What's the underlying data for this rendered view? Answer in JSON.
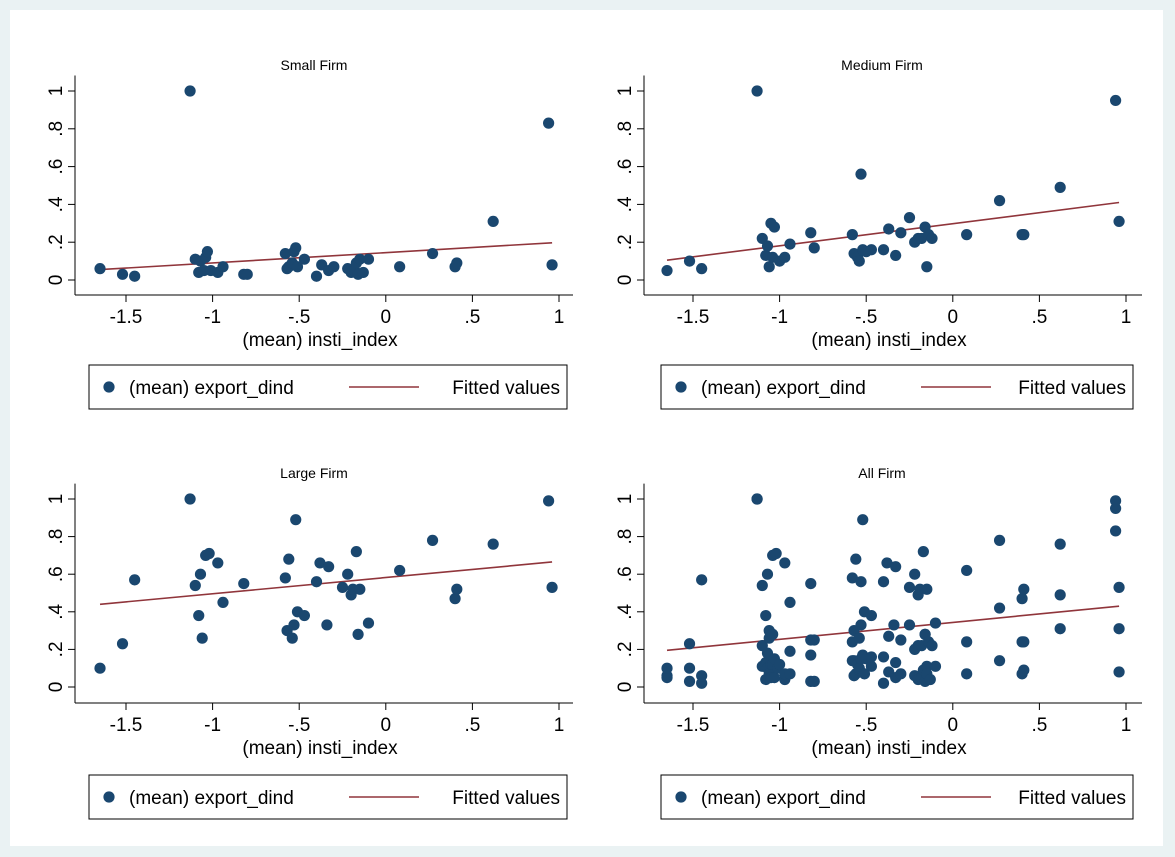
{
  "colors": {
    "outer_bg": "#eaf2f3",
    "plot_bg": "#ffffff",
    "marker": "#1a476f",
    "fit_line": "#90353b",
    "legend_border": "#000000"
  },
  "legend": {
    "marker_label": "(mean) export_dind",
    "line_label": "Fitted values",
    "placement": "bottom"
  },
  "chart_data": [
    {
      "type": "scatter",
      "title": "Small Firm",
      "xlabel": "(mean) insti_index",
      "ylabel": "",
      "xlim": [
        -1.7,
        1.0
      ],
      "ylim": [
        -0.05,
        1.05
      ],
      "xticks": [
        -1.5,
        -1,
        -0.5,
        0,
        0.5,
        1
      ],
      "xtick_labels": [
        "-1.5",
        "-1",
        "-.5",
        "0",
        ".5",
        "1"
      ],
      "yticks": [
        0,
        0.2,
        0.4,
        0.6,
        0.8,
        1
      ],
      "ytick_labels": [
        "0",
        ".2",
        ".4",
        ".6",
        ".8",
        "1"
      ],
      "grid": false,
      "series": [
        {
          "name": "(mean) export_dind",
          "kind": "markers",
          "x": [
            -1.65,
            -1.52,
            -1.45,
            -1.13,
            -1.1,
            -1.08,
            -1.07,
            -1.05,
            -1.04,
            -1.03,
            -1.01,
            -0.97,
            -0.94,
            -0.82,
            -0.8,
            -0.58,
            -0.57,
            -0.56,
            -0.54,
            -0.53,
            -0.52,
            -0.51,
            -0.47,
            -0.4,
            -0.37,
            -0.33,
            -0.3,
            -0.22,
            -0.2,
            -0.18,
            -0.17,
            -0.16,
            -0.15,
            -0.13,
            -0.1,
            0.08,
            0.27,
            0.4,
            0.41,
            0.62,
            0.94,
            0.96
          ],
          "y": [
            0.06,
            0.03,
            0.02,
            1.0,
            0.11,
            0.04,
            0.1,
            0.05,
            0.12,
            0.15,
            0.05,
            0.04,
            0.07,
            0.03,
            0.03,
            0.14,
            0.06,
            0.07,
            0.09,
            0.15,
            0.17,
            0.07,
            0.11,
            0.02,
            0.08,
            0.05,
            0.07,
            0.06,
            0.04,
            0.05,
            0.09,
            0.03,
            0.11,
            0.04,
            0.11,
            0.07,
            0.14,
            0.07,
            0.09,
            0.31,
            0.83,
            0.08
          ]
        },
        {
          "name": "Fitted values",
          "kind": "line",
          "x": [
            -1.65,
            0.96
          ],
          "y": [
            0.055,
            0.197
          ]
        }
      ]
    },
    {
      "type": "scatter",
      "title": "Medium Firm",
      "xlabel": "(mean) insti_index",
      "ylabel": "",
      "xlim": [
        -1.7,
        1.0
      ],
      "ylim": [
        -0.05,
        1.05
      ],
      "xticks": [
        -1.5,
        -1,
        -0.5,
        0,
        0.5,
        1
      ],
      "xtick_labels": [
        "-1.5",
        "-1",
        "-.5",
        "0",
        ".5",
        "1"
      ],
      "yticks": [
        0,
        0.2,
        0.4,
        0.6,
        0.8,
        1
      ],
      "ytick_labels": [
        "0",
        ".2",
        ".4",
        ".6",
        ".8",
        "1"
      ],
      "grid": false,
      "series": [
        {
          "name": "(mean) export_dind",
          "kind": "markers",
          "x": [
            -1.65,
            -1.52,
            -1.45,
            -1.13,
            -1.1,
            -1.08,
            -1.07,
            -1.06,
            -1.05,
            -1.04,
            -1.03,
            -1.0,
            -0.97,
            -0.94,
            -0.82,
            -0.8,
            -0.58,
            -0.57,
            -0.55,
            -0.54,
            -0.53,
            -0.52,
            -0.5,
            -0.47,
            -0.4,
            -0.37,
            -0.33,
            -0.3,
            -0.25,
            -0.22,
            -0.2,
            -0.18,
            -0.16,
            -0.15,
            -0.14,
            -0.12,
            0.08,
            0.27,
            0.4,
            0.41,
            0.62,
            0.94,
            0.96
          ],
          "y": [
            0.05,
            0.1,
            0.06,
            1.0,
            0.22,
            0.13,
            0.18,
            0.07,
            0.3,
            0.12,
            0.28,
            0.1,
            0.12,
            0.19,
            0.25,
            0.17,
            0.24,
            0.14,
            0.12,
            0.1,
            0.56,
            0.16,
            0.15,
            0.16,
            0.16,
            0.27,
            0.13,
            0.25,
            0.33,
            0.2,
            0.22,
            0.22,
            0.28,
            0.07,
            0.24,
            0.22,
            0.24,
            0.42,
            0.24,
            0.24,
            0.49,
            0.95,
            0.31
          ]
        },
        {
          "name": "Fitted values",
          "kind": "line",
          "x": [
            -1.65,
            0.96
          ],
          "y": [
            0.105,
            0.41
          ]
        }
      ]
    },
    {
      "type": "scatter",
      "title": "Large Firm",
      "xlabel": "(mean) insti_index",
      "ylabel": "",
      "xlim": [
        -1.7,
        1.0
      ],
      "ylim": [
        -0.05,
        1.05
      ],
      "xticks": [
        -1.5,
        -1,
        -0.5,
        0,
        0.5,
        1
      ],
      "xtick_labels": [
        "-1.5",
        "-1",
        "-.5",
        "0",
        ".5",
        "1"
      ],
      "yticks": [
        0,
        0.2,
        0.4,
        0.6,
        0.8,
        1
      ],
      "ytick_labels": [
        "0",
        ".2",
        ".4",
        ".6",
        ".8",
        "1"
      ],
      "grid": false,
      "series": [
        {
          "name": "(mean) export_dind",
          "kind": "markers",
          "x": [
            -1.65,
            -1.52,
            -1.45,
            -1.13,
            -1.1,
            -1.08,
            -1.07,
            -1.06,
            -1.04,
            -1.02,
            -0.97,
            -0.94,
            -0.82,
            -0.58,
            -0.57,
            -0.56,
            -0.54,
            -0.53,
            -0.52,
            -0.51,
            -0.47,
            -0.4,
            -0.38,
            -0.34,
            -0.33,
            -0.25,
            -0.22,
            -0.2,
            -0.19,
            -0.17,
            -0.16,
            -0.15,
            -0.1,
            0.08,
            0.27,
            0.4,
            0.41,
            0.62,
            0.94,
            0.96
          ],
          "y": [
            0.1,
            0.23,
            0.57,
            1.0,
            0.54,
            0.38,
            0.6,
            0.26,
            0.7,
            0.71,
            0.66,
            0.45,
            0.55,
            0.58,
            0.3,
            0.68,
            0.26,
            0.33,
            0.89,
            0.4,
            0.38,
            0.56,
            0.66,
            0.33,
            0.64,
            0.53,
            0.6,
            0.49,
            0.52,
            0.72,
            0.28,
            0.52,
            0.34,
            0.62,
            0.78,
            0.47,
            0.52,
            0.76,
            0.99,
            0.53
          ]
        },
        {
          "name": "Fitted values",
          "kind": "line",
          "x": [
            -1.65,
            0.96
          ],
          "y": [
            0.44,
            0.665
          ]
        }
      ]
    },
    {
      "type": "scatter",
      "title": "All Firm",
      "xlabel": "(mean) insti_index",
      "ylabel": "",
      "xlim": [
        -1.7,
        1.0
      ],
      "ylim": [
        -0.05,
        1.05
      ],
      "xticks": [
        -1.5,
        -1,
        -0.5,
        0,
        0.5,
        1
      ],
      "xtick_labels": [
        "-1.5",
        "-1",
        "-.5",
        "0",
        ".5",
        "1"
      ],
      "yticks": [
        0,
        0.2,
        0.4,
        0.6,
        0.8,
        1
      ],
      "ytick_labels": [
        "0",
        ".2",
        ".4",
        ".6",
        ".8",
        "1"
      ],
      "grid": false,
      "series": [
        {
          "name": "(mean) export_dind",
          "kind": "markers",
          "x": [
            -1.65,
            -1.65,
            -1.65,
            -1.52,
            -1.52,
            -1.52,
            -1.45,
            -1.45,
            -1.45,
            -1.13,
            -1.13,
            -1.1,
            -1.1,
            -1.1,
            -1.08,
            -1.08,
            -1.08,
            -1.07,
            -1.07,
            -1.07,
            -1.06,
            -1.06,
            -1.06,
            -1.05,
            -1.05,
            -1.04,
            -1.04,
            -1.04,
            -1.03,
            -1.03,
            -1.02,
            -1.01,
            -1.0,
            -0.97,
            -0.97,
            -0.97,
            -0.94,
            -0.94,
            -0.94,
            -0.82,
            -0.82,
            -0.82,
            -0.82,
            -0.8,
            -0.8,
            -0.58,
            -0.58,
            -0.58,
            -0.57,
            -0.57,
            -0.57,
            -0.56,
            -0.56,
            -0.55,
            -0.54,
            -0.54,
            -0.54,
            -0.53,
            -0.53,
            -0.53,
            -0.52,
            -0.52,
            -0.52,
            -0.51,
            -0.51,
            -0.5,
            -0.47,
            -0.47,
            -0.47,
            -0.4,
            -0.4,
            -0.4,
            -0.38,
            -0.37,
            -0.37,
            -0.34,
            -0.33,
            -0.33,
            -0.33,
            -0.3,
            -0.3,
            -0.25,
            -0.25,
            -0.22,
            -0.22,
            -0.22,
            -0.2,
            -0.2,
            -0.2,
            -0.19,
            -0.18,
            -0.18,
            -0.17,
            -0.17,
            -0.16,
            -0.16,
            -0.16,
            -0.15,
            -0.15,
            -0.15,
            -0.14,
            -0.13,
            -0.12,
            -0.1,
            -0.1,
            0.08,
            0.08,
            0.08,
            0.27,
            0.27,
            0.27,
            0.4,
            0.4,
            0.4,
            0.41,
            0.41,
            0.41,
            0.62,
            0.62,
            0.62,
            0.94,
            0.94,
            0.94,
            0.96,
            0.96,
            0.96
          ],
          "y": [
            0.06,
            0.05,
            0.1,
            0.03,
            0.1,
            0.23,
            0.02,
            0.06,
            0.57,
            1.0,
            1.0,
            0.11,
            0.22,
            0.54,
            0.04,
            0.13,
            0.38,
            0.1,
            0.18,
            0.6,
            0.07,
            0.26,
            0.3,
            0.05,
            0.12,
            0.12,
            0.28,
            0.7,
            0.15,
            0.05,
            0.71,
            0.1,
            0.12,
            0.04,
            0.07,
            0.66,
            0.07,
            0.19,
            0.45,
            0.03,
            0.25,
            0.55,
            0.17,
            0.03,
            0.25,
            0.14,
            0.24,
            0.58,
            0.06,
            0.14,
            0.3,
            0.07,
            0.68,
            0.12,
            0.09,
            0.1,
            0.26,
            0.15,
            0.56,
            0.33,
            0.17,
            0.16,
            0.89,
            0.07,
            0.4,
            0.15,
            0.11,
            0.16,
            0.38,
            0.02,
            0.16,
            0.56,
            0.66,
            0.08,
            0.27,
            0.33,
            0.05,
            0.13,
            0.64,
            0.07,
            0.25,
            0.33,
            0.53,
            0.06,
            0.2,
            0.6,
            0.04,
            0.22,
            0.49,
            0.52,
            0.05,
            0.22,
            0.09,
            0.72,
            0.03,
            0.28,
            0.28,
            0.11,
            0.07,
            0.52,
            0.24,
            0.04,
            0.22,
            0.11,
            0.34,
            0.07,
            0.24,
            0.62,
            0.14,
            0.42,
            0.78,
            0.07,
            0.24,
            0.47,
            0.09,
            0.24,
            0.52,
            0.31,
            0.49,
            0.76,
            0.83,
            0.95,
            0.99,
            0.08,
            0.31,
            0.53
          ]
        },
        {
          "name": "Fitted values",
          "kind": "line",
          "x": [
            -1.65,
            0.96
          ],
          "y": [
            0.195,
            0.43
          ]
        }
      ]
    }
  ]
}
